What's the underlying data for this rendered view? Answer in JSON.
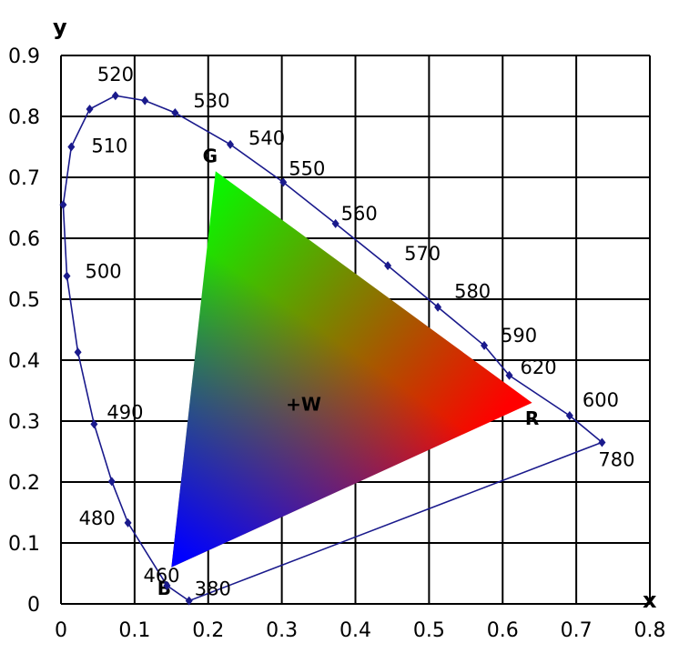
{
  "chart_data": {
    "type": "scatter",
    "xlabel": "x",
    "ylabel": "y",
    "xlim": [
      0,
      0.8
    ],
    "ylim": [
      0,
      0.9
    ],
    "x_ticks": [
      "0",
      "0.1",
      "0.2",
      "0.3",
      "0.4",
      "0.5",
      "0.6",
      "0.7",
      "0.8"
    ],
    "y_ticks": [
      "0",
      "0.1",
      "0.2",
      "0.3",
      "0.4",
      "0.5",
      "0.6",
      "0.7",
      "0.8",
      "0.9"
    ],
    "grid": true,
    "locus": [
      {
        "label": "380",
        "x": 0.174,
        "y": 0.005
      },
      {
        "label": "460",
        "x": 0.144,
        "y": 0.03
      },
      {
        "label": "480",
        "x": 0.091,
        "y": 0.133
      },
      {
        "label": "",
        "x": 0.069,
        "y": 0.201
      },
      {
        "label": "490",
        "x": 0.045,
        "y": 0.295
      },
      {
        "label": "",
        "x": 0.023,
        "y": 0.413
      },
      {
        "label": "500",
        "x": 0.008,
        "y": 0.538
      },
      {
        "label": "",
        "x": 0.003,
        "y": 0.655
      },
      {
        "label": "510",
        "x": 0.014,
        "y": 0.75
      },
      {
        "label": "",
        "x": 0.039,
        "y": 0.812
      },
      {
        "label": "520",
        "x": 0.074,
        "y": 0.834
      },
      {
        "label": "",
        "x": 0.114,
        "y": 0.826
      },
      {
        "label": "530",
        "x": 0.155,
        "y": 0.806
      },
      {
        "label": "540",
        "x": 0.23,
        "y": 0.754
      },
      {
        "label": "550",
        "x": 0.302,
        "y": 0.692
      },
      {
        "label": "560",
        "x": 0.373,
        "y": 0.624
      },
      {
        "label": "570",
        "x": 0.444,
        "y": 0.555
      },
      {
        "label": "580",
        "x": 0.512,
        "y": 0.487
      },
      {
        "label": "590",
        "x": 0.575,
        "y": 0.424
      },
      {
        "label": "620",
        "x": 0.609,
        "y": 0.375
      },
      {
        "label": "600",
        "x": 0.691,
        "y": 0.309
      },
      {
        "label": "780",
        "x": 0.735,
        "y": 0.265
      }
    ],
    "gamut": [
      {
        "label": "R",
        "x": 0.64,
        "y": 0.33
      },
      {
        "label": "G",
        "x": 0.21,
        "y": 0.71
      },
      {
        "label": "B",
        "x": 0.15,
        "y": 0.06
      }
    ],
    "white_point": {
      "label": "+W",
      "x": 0.313,
      "y": 0.329
    },
    "colors": {
      "locus": "#1a1a8c",
      "grid": "#000000",
      "red": "#ff0000",
      "green": "#00ff00",
      "blue": "#0000ff"
    }
  }
}
